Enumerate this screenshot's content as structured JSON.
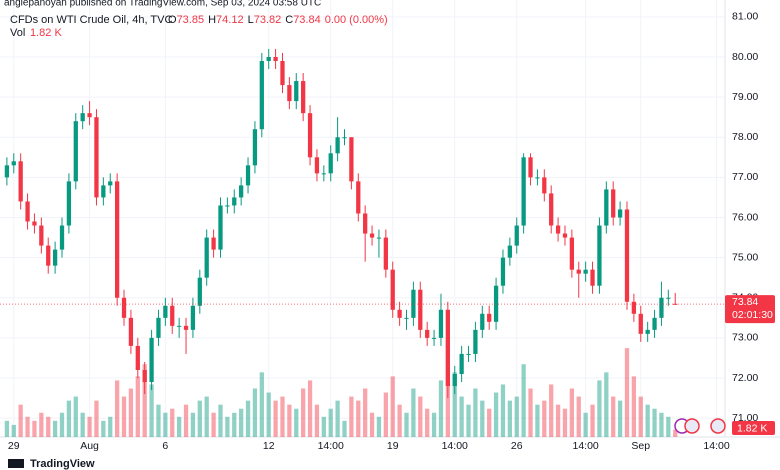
{
  "header": {
    "published": "anglepanoyan published on TradingView.com, Sep 03, 2024 03:58 UTC",
    "symbol": "CFDs on WTI Crude Oil, 4h, TVC",
    "ohlc": [
      {
        "label": "O",
        "value": 73.85
      },
      {
        "label": "H",
        "value": 74.12
      },
      {
        "label": "L",
        "value": 73.82
      },
      {
        "label": "C",
        "value": 73.84
      }
    ],
    "change": "0.00 (0.00%)",
    "vol_title": "Vol",
    "vol_value": "1.82 K"
  },
  "chart_data": {
    "type": "candlestick",
    "up_color": "#089981",
    "down_color": "#f23645",
    "open": [
      77.0,
      77.3,
      77.4,
      76.4,
      75.9,
      75.8,
      75.3,
      74.8,
      75.2,
      75.8,
      76.9,
      78.4,
      78.6,
      78.5,
      76.5,
      76.8,
      76.9,
      74.0,
      73.5,
      72.8,
      72.2,
      71.9,
      73.0,
      73.5,
      73.8,
      73.3,
      73.3,
      73.2,
      73.8,
      74.5,
      75.5,
      75.2,
      76.3,
      76.3,
      76.5,
      76.8,
      77.3,
      78.2,
      79.9,
      80.0,
      79.9,
      79.3,
      78.9,
      79.4,
      78.6,
      77.5,
      77.1,
      77.1,
      77.6,
      78.0,
      78.0,
      76.9,
      76.1,
      75.6,
      75.5,
      75.5,
      74.7,
      73.7,
      73.5,
      73.5,
      74.2,
      73.2,
      73.0,
      73.0,
      73.7,
      71.8,
      72.1,
      72.6,
      72.6,
      73.2,
      73.6,
      73.4,
      74.3,
      75.0,
      75.3,
      75.8,
      77.5,
      77.0,
      77.0,
      76.6,
      75.8,
      75.6,
      75.5,
      74.7,
      74.6,
      74.7,
      74.3,
      75.8,
      76.7,
      76.0,
      76.2,
      73.9,
      73.6,
      73.1,
      73.2,
      73.5,
      74.0,
      73.85
    ],
    "high": [
      77.5,
      77.6,
      77.6,
      76.6,
      76.1,
      76.0,
      75.5,
      75.4,
      76.0,
      77.1,
      78.6,
      78.8,
      78.9,
      78.7,
      77.0,
      77.1,
      77.1,
      74.2,
      73.7,
      73.0,
      72.4,
      73.2,
      73.7,
      74.0,
      74.0,
      73.5,
      73.5,
      74.0,
      74.7,
      75.7,
      75.7,
      76.5,
      76.5,
      76.7,
      77.0,
      77.5,
      78.4,
      80.1,
      80.2,
      80.2,
      80.1,
      79.5,
      79.6,
      79.6,
      78.8,
      77.7,
      77.3,
      77.8,
      78.5,
      78.2,
      78.0,
      77.1,
      76.3,
      75.8,
      75.7,
      75.7,
      74.9,
      73.9,
      73.7,
      74.4,
      74.4,
      73.4,
      73.2,
      74.1,
      73.9,
      72.3,
      72.8,
      72.8,
      73.4,
      73.8,
      73.8,
      74.5,
      75.2,
      75.5,
      76.0,
      77.6,
      77.6,
      77.2,
      77.2,
      76.8,
      76.0,
      75.8,
      75.7,
      74.9,
      74.9,
      74.9,
      76.0,
      76.9,
      76.9,
      76.4,
      76.4,
      74.1,
      73.8,
      73.4,
      73.7,
      74.4,
      74.2,
      74.12
    ],
    "low": [
      76.8,
      77.1,
      76.2,
      75.7,
      75.6,
      75.1,
      74.6,
      74.6,
      75.0,
      75.6,
      76.7,
      78.2,
      78.3,
      76.3,
      76.3,
      76.6,
      73.8,
      73.3,
      72.6,
      72.0,
      71.6,
      71.7,
      72.8,
      73.3,
      73.1,
      73.0,
      72.6,
      73.0,
      73.6,
      74.3,
      75.0,
      75.0,
      76.1,
      76.1,
      76.3,
      76.6,
      77.1,
      78.0,
      79.7,
      79.7,
      79.1,
      78.7,
      78.7,
      78.4,
      77.3,
      76.9,
      76.9,
      76.9,
      77.4,
      77.8,
      76.7,
      75.9,
      74.9,
      75.3,
      75.0,
      74.5,
      73.5,
      73.3,
      73.2,
      73.3,
      73.0,
      72.8,
      72.8,
      72.8,
      71.5,
      71.6,
      71.9,
      72.4,
      72.4,
      73.0,
      73.2,
      73.2,
      74.1,
      74.8,
      75.1,
      75.6,
      76.8,
      76.8,
      76.4,
      75.6,
      75.4,
      75.3,
      74.5,
      74.0,
      74.4,
      74.1,
      74.1,
      75.6,
      75.8,
      75.8,
      73.7,
      73.4,
      72.9,
      72.9,
      73.0,
      73.3,
      73.8,
      73.82
    ],
    "close": [
      77.3,
      77.4,
      76.4,
      75.9,
      75.8,
      75.3,
      74.8,
      75.2,
      75.8,
      76.9,
      78.4,
      78.6,
      78.5,
      76.5,
      76.8,
      76.9,
      74.0,
      73.5,
      72.8,
      72.2,
      71.9,
      73.0,
      73.5,
      73.8,
      73.3,
      73.3,
      73.2,
      73.8,
      74.5,
      75.5,
      75.2,
      76.3,
      76.3,
      76.5,
      76.8,
      77.3,
      78.2,
      79.9,
      80.0,
      79.9,
      79.3,
      78.9,
      79.4,
      78.6,
      77.5,
      77.1,
      77.1,
      77.6,
      78.0,
      78.0,
      76.9,
      76.1,
      75.6,
      75.5,
      75.5,
      74.7,
      73.7,
      73.5,
      73.5,
      74.2,
      73.2,
      73.0,
      73.0,
      73.7,
      71.8,
      72.1,
      72.6,
      72.6,
      73.2,
      73.6,
      73.4,
      74.3,
      75.0,
      75.3,
      75.8,
      77.5,
      77.0,
      77.0,
      76.6,
      75.8,
      75.6,
      75.5,
      74.7,
      74.6,
      74.7,
      74.3,
      75.8,
      76.7,
      76.0,
      76.2,
      73.9,
      73.6,
      73.1,
      73.2,
      73.5,
      74.0,
      74.0,
      73.84
    ],
    "volume": [
      4,
      3,
      8,
      5,
      4,
      6,
      5,
      4,
      6,
      9,
      10,
      6,
      5,
      9,
      4,
      5,
      14,
      10,
      12,
      15,
      18,
      13,
      8,
      6,
      7,
      5,
      8,
      6,
      9,
      10,
      6,
      8,
      5,
      6,
      7,
      9,
      12,
      16,
      11,
      9,
      10,
      8,
      7,
      12,
      14,
      8,
      5,
      7,
      9,
      4,
      10,
      9,
      12,
      6,
      5,
      11,
      15,
      8,
      6,
      12,
      10,
      7,
      6,
      14,
      24,
      16,
      10,
      8,
      12,
      9,
      7,
      11,
      13,
      9,
      10,
      18,
      12,
      8,
      9,
      13,
      8,
      7,
      12,
      10,
      6,
      8,
      14,
      16,
      10,
      9,
      22,
      15,
      10,
      8,
      7,
      6,
      5,
      1.82
    ],
    "ylim": [
      70.53,
      81.42
    ],
    "yticks": [
      {
        "value": 71,
        "label": "71.00"
      },
      {
        "value": 72,
        "label": "72.00"
      },
      {
        "value": 73,
        "label": "73.00"
      },
      {
        "value": 74,
        "label": "74.00"
      },
      {
        "value": 75,
        "label": "75.00"
      },
      {
        "value": 76,
        "label": "76.00"
      },
      {
        "value": 77,
        "label": "77.00"
      },
      {
        "value": 78,
        "label": "78.00"
      },
      {
        "value": 79,
        "label": "79.00"
      },
      {
        "value": 80,
        "label": "80.00"
      },
      {
        "value": 81,
        "label": "81.00"
      }
    ],
    "xlim": [
      -1,
      103.5
    ],
    "xticks": [
      {
        "value": 1,
        "label": "29"
      },
      {
        "value": 12,
        "label": "Aug"
      },
      {
        "value": 23,
        "label": "6"
      },
      {
        "value": 38,
        "label": "12"
      },
      {
        "value": 47,
        "label": "14:00"
      },
      {
        "value": 56,
        "label": "19"
      },
      {
        "value": 65,
        "label": "14:00"
      },
      {
        "value": 74,
        "label": "26"
      },
      {
        "value": 84,
        "label": "14:00"
      },
      {
        "value": 92,
        "label": "Sep"
      },
      {
        "value": 103,
        "label": "14:00"
      }
    ],
    "last_price": {
      "value": 73.84,
      "label": "73.84",
      "countdown": "02:01:30"
    },
    "volume_label": "1.82 K",
    "brand": "TradingView"
  }
}
